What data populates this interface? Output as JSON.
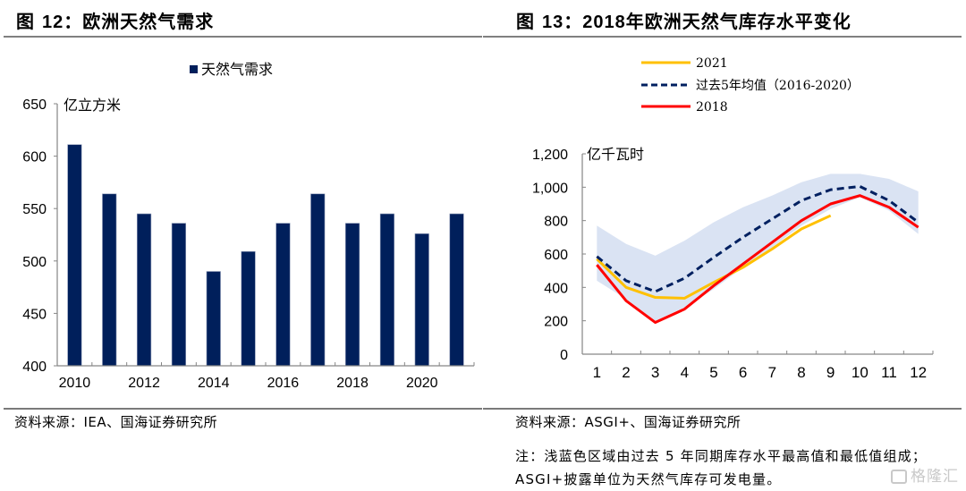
{
  "figures": [
    {
      "id": "fig12",
      "label": "图 12：",
      "label_prefix": "图 ",
      "label_num": "12",
      "label_suffix": "：",
      "title": "欧洲天然气需求",
      "source": "资料来源：IEA、国海证券研究所"
    },
    {
      "id": "fig13",
      "label_prefix": "图 ",
      "label_num": "13",
      "label_suffix": "：",
      "title_year": "2018",
      "title": "年欧洲天然气库存水平变化",
      "source": "资料来源：ASGI+、国海证券研究所",
      "note": "注：浅蓝色区域由过去 5 年同期库存水平最高值和最低值组成；ASGI+披露单位为天然气库存可发电量。"
    }
  ],
  "watermark": "格隆汇",
  "chart_data": [
    {
      "type": "bar",
      "title": "欧洲天然气需求",
      "ylabel": "亿立方米",
      "xlabel": "",
      "ylim": [
        400,
        650
      ],
      "yticks": [
        400,
        450,
        500,
        550,
        600,
        650
      ],
      "ytick_labels": [
        "400",
        "450",
        "500",
        "550",
        "600",
        "650"
      ],
      "categories": [
        "2010",
        "2011",
        "2012",
        "2013",
        "2014",
        "2015",
        "2016",
        "2017",
        "2018",
        "2019",
        "2020",
        "2021"
      ],
      "xtick_labels": [
        "2010",
        "",
        "2012",
        "",
        "2014",
        "",
        "2016",
        "",
        "2018",
        "",
        "2020",
        ""
      ],
      "series": [
        {
          "name": "天然气需求",
          "color": "#001f5b",
          "values": [
            611,
            564,
            545,
            536,
            490,
            509,
            536,
            564,
            536,
            545,
            526,
            545
          ]
        }
      ],
      "legend": {
        "position": "top-center",
        "entries": [
          "天然气需求"
        ]
      },
      "grid": false
    },
    {
      "type": "line",
      "title": "2018年欧洲天然气库存水平变化",
      "ylabel": "亿千瓦时",
      "xlabel": "",
      "ylim": [
        0,
        1200
      ],
      "yticks": [
        0,
        200,
        400,
        600,
        800,
        1000,
        1200
      ],
      "ytick_labels": [
        "0",
        "200",
        "400",
        "600",
        "800",
        "1,000",
        "1,200"
      ],
      "x": [
        1,
        2,
        3,
        4,
        5,
        6,
        7,
        8,
        9,
        10,
        11,
        12
      ],
      "xtick_labels": [
        "1",
        "2",
        "3",
        "4",
        "5",
        "6",
        "7",
        "8",
        "9",
        "10",
        "11",
        "12"
      ],
      "band": {
        "name": "过去5年同期最高值-最低值区间",
        "color": "#dae3f3",
        "upper": [
          770,
          660,
          590,
          680,
          790,
          880,
          950,
          1030,
          1080,
          1080,
          1050,
          975
        ],
        "lower": [
          440,
          330,
          200,
          280,
          390,
          520,
          640,
          770,
          870,
          940,
          860,
          720
        ]
      },
      "series": [
        {
          "name": "2021",
          "color": "#ffc000",
          "style": "solid",
          "values": [
            570,
            400,
            340,
            335,
            430,
            520,
            630,
            750,
            830,
            null,
            null,
            null
          ]
        },
        {
          "name": "过去5年均值（2016-2020）",
          "color": "#002060",
          "style": "dashed",
          "values": [
            585,
            440,
            375,
            455,
            580,
            700,
            810,
            920,
            985,
            1005,
            920,
            790
          ]
        },
        {
          "name": "2018",
          "color": "#ff0000",
          "style": "solid",
          "values": [
            535,
            320,
            190,
            270,
            410,
            540,
            670,
            800,
            900,
            950,
            880,
            760
          ]
        }
      ],
      "legend": {
        "position": "top",
        "entries": [
          "2021",
          "过去5年均值（2016-2020）",
          "2018"
        ]
      },
      "grid": false
    }
  ]
}
